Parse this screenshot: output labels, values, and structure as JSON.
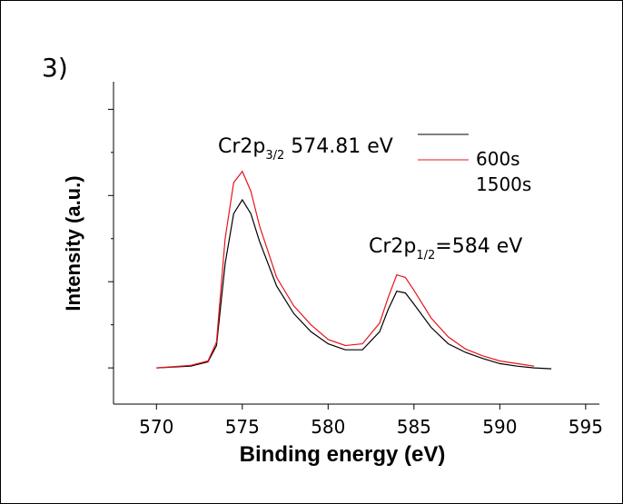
{
  "chart_data": {
    "type": "line",
    "panel_label": "3)",
    "xlabel": "Binding energy  (eV)",
    "ylabel": "Intensity (a.u.)",
    "xlim": [
      567.5,
      595.8
    ],
    "xticks": [
      570,
      575,
      580,
      585,
      590,
      595
    ],
    "ylim": [
      -0.42,
      3.32
    ],
    "yticks": [
      0,
      1,
      2,
      3
    ],
    "yminor": [
      0.5,
      1.5,
      2.5
    ],
    "annotations": [
      {
        "text": "Cr2p",
        "sub": "3/2",
        "rest": " 574.81 eV"
      },
      {
        "text": "Cr2p",
        "sub": "1/2",
        "rest": "=584 eV"
      }
    ],
    "series": [
      {
        "name": "600s",
        "color": "#000000",
        "x": [
          570,
          572,
          573,
          573.5,
          574,
          574.5,
          575,
          575.5,
          576,
          577,
          578,
          579,
          580,
          581,
          582,
          583,
          583.5,
          584,
          584.5,
          585,
          586,
          587,
          588,
          589,
          590,
          591,
          592,
          593
        ],
        "values": [
          0.0,
          0.02,
          0.07,
          0.26,
          1.21,
          1.79,
          1.95,
          1.79,
          1.47,
          0.95,
          0.63,
          0.42,
          0.28,
          0.21,
          0.21,
          0.42,
          0.68,
          0.89,
          0.87,
          0.74,
          0.47,
          0.28,
          0.18,
          0.11,
          0.05,
          0.02,
          0.0,
          -0.01
        ]
      },
      {
        "name": "1500s",
        "color": "#e8141c",
        "x": [
          570,
          572,
          573,
          573.5,
          574,
          574.5,
          575,
          575.5,
          576,
          577,
          578,
          579,
          580,
          581,
          582,
          583,
          583.5,
          584,
          584.5,
          585,
          586,
          587,
          588,
          589,
          590,
          591,
          592
        ],
        "values": [
          0.0,
          0.03,
          0.08,
          0.3,
          1.5,
          2.15,
          2.28,
          2.05,
          1.65,
          1.05,
          0.72,
          0.5,
          0.33,
          0.26,
          0.28,
          0.52,
          0.82,
          1.08,
          1.05,
          0.9,
          0.58,
          0.36,
          0.22,
          0.14,
          0.08,
          0.05,
          0.02
        ]
      }
    ]
  }
}
